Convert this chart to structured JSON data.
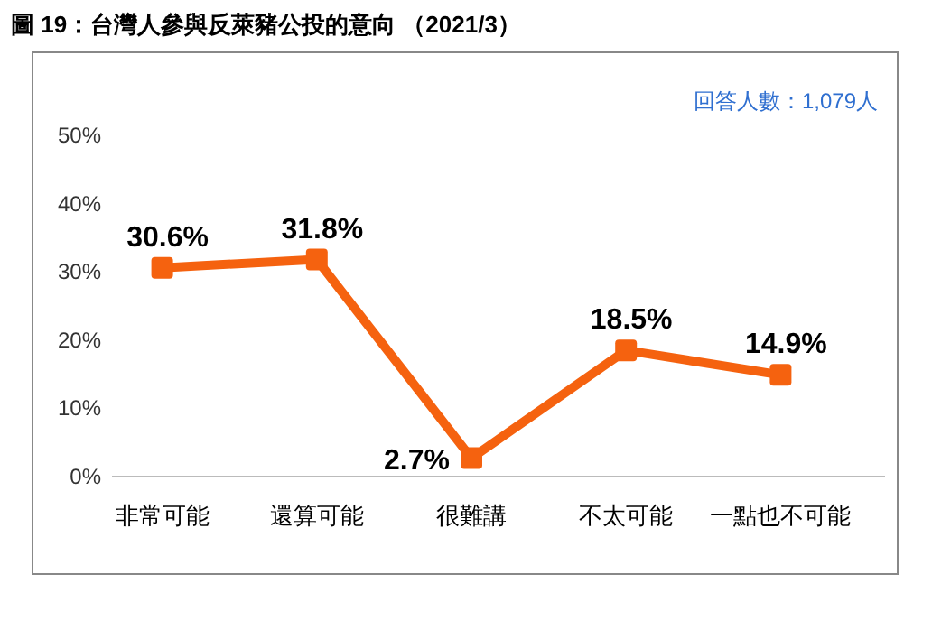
{
  "chart_data": {
    "type": "line",
    "title": "圖 19：台灣人參與反萊豬公投的意向 （2021/3）",
    "annotations": [
      "回答人數：1,079人"
    ],
    "categories": [
      "非常可能",
      "還算可能",
      "很難講",
      "不太可能",
      "一點也不可能"
    ],
    "series": [
      {
        "color": "#f5620f",
        "values": [
          30.6,
          31.8,
          2.7,
          18.5,
          14.9
        ],
        "value_labels": [
          "30.6%",
          "31.8%",
          "2.7%",
          "18.5%",
          "14.9%"
        ]
      }
    ],
    "ylim": [
      0,
      50
    ],
    "yticks": [
      {
        "value": 0,
        "label": "0%"
      },
      {
        "value": 10,
        "label": "10%"
      },
      {
        "value": 20,
        "label": "20%"
      },
      {
        "value": 30,
        "label": "30%"
      },
      {
        "value": 40,
        "label": "40%"
      },
      {
        "value": 50,
        "label": "50%"
      }
    ],
    "marker": "square",
    "line_style": "solid",
    "grid": false
  }
}
